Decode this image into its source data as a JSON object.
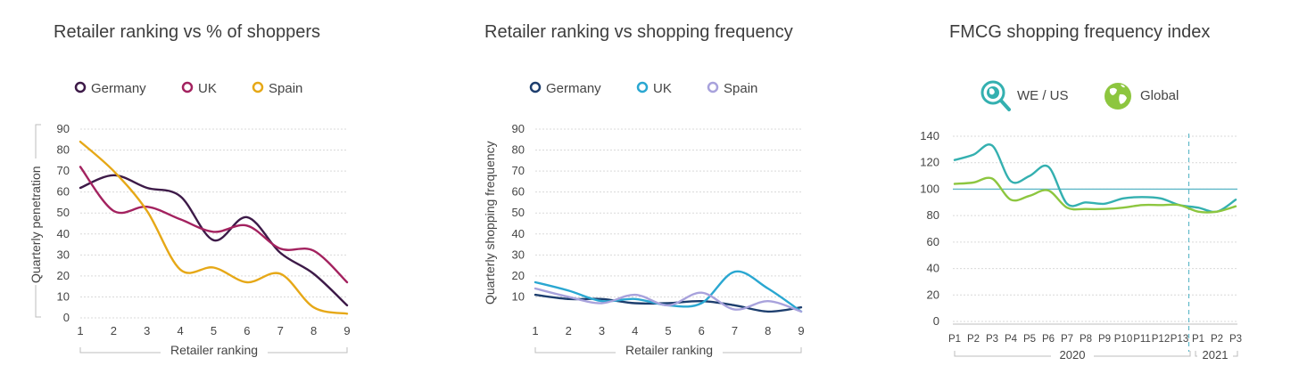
{
  "chart_data": [
    {
      "type": "line",
      "title": "Retailer ranking vs % of shoppers",
      "xlabel": "Retailer ranking",
      "ylabel": "Quarterly penetration",
      "x": [
        1,
        2,
        3,
        4,
        5,
        6,
        7,
        8,
        9
      ],
      "xticks": [
        "1",
        "2",
        "3",
        "4",
        "5",
        "6",
        "7",
        "8",
        "9"
      ],
      "yticks": [
        "0",
        "10",
        "20",
        "30",
        "40",
        "50",
        "60",
        "70",
        "80",
        "90"
      ],
      "ylim": [
        0,
        90
      ],
      "grid": true,
      "legend": "top",
      "series": [
        {
          "name": "Germany",
          "color": "#3d1a48",
          "values": [
            62,
            68,
            62,
            58,
            37,
            48,
            31,
            21,
            6
          ]
        },
        {
          "name": "UK",
          "color": "#a3225f",
          "values": [
            72,
            51,
            53,
            47,
            41,
            44,
            33,
            32,
            17
          ]
        },
        {
          "name": "Spain",
          "color": "#e6a817",
          "values": [
            84,
            70,
            51,
            23,
            24,
            17,
            21,
            5,
            2
          ]
        }
      ]
    },
    {
      "type": "line",
      "title": "Retailer ranking vs shopping frequency",
      "xlabel": "Retailer ranking",
      "ylabel": "Quarterly shopping frequency",
      "x": [
        1,
        2,
        3,
        4,
        5,
        6,
        7,
        8,
        9
      ],
      "xticks": [
        "1",
        "2",
        "3",
        "4",
        "5",
        "6",
        "7",
        "8",
        "9"
      ],
      "yticks": [
        "10",
        "20",
        "30",
        "40",
        "50",
        "60",
        "70",
        "80",
        "90"
      ],
      "ylim": [
        0,
        90
      ],
      "grid": true,
      "legend": "top",
      "series": [
        {
          "name": "Germany",
          "color": "#1d3e6e",
          "values": [
            11,
            9,
            9,
            7,
            7,
            8,
            6,
            3,
            5
          ]
        },
        {
          "name": "UK",
          "color": "#2aa7d1",
          "values": [
            17,
            13,
            8,
            9,
            6,
            7,
            22,
            14,
            3
          ]
        },
        {
          "name": "Spain",
          "color": "#a8a2dc",
          "values": [
            14,
            10,
            7,
            11,
            6,
            12,
            4,
            8,
            3
          ]
        }
      ]
    },
    {
      "type": "line",
      "title": "FMCG shopping frequency index",
      "xlabel": "",
      "ylabel": "",
      "x": [
        "P1",
        "P2",
        "P3",
        "P4",
        "P5",
        "P6",
        "P7",
        "P8",
        "P9",
        "P10",
        "P11",
        "P12",
        "P13",
        "P1",
        "P2",
        "P3"
      ],
      "xticks": [
        "P1",
        "P2",
        "P3",
        "P4",
        "P5",
        "P6",
        "P7",
        "P8",
        "P9",
        "P10",
        "P11",
        "P12",
        "P13",
        "P1",
        "P2",
        "P3"
      ],
      "yticks": [
        "0",
        "20",
        "40",
        "60",
        "80",
        "100",
        "120",
        "140"
      ],
      "ylim": [
        0,
        140
      ],
      "grid": true,
      "reference_line": 100,
      "period_divider_after": "P13 2020",
      "period_groups": [
        "2020",
        "2021"
      ],
      "legend": "top",
      "series": [
        {
          "name": "WE / US",
          "color": "#34b0b0",
          "icon": "globe-search-icon",
          "values": [
            122,
            126,
            133,
            106,
            110,
            117,
            89,
            90,
            89,
            93,
            94,
            93,
            88,
            86,
            83,
            92
          ]
        },
        {
          "name": "Global",
          "color": "#8dc63f",
          "icon": "globe-icon",
          "values": [
            104,
            105,
            108,
            92,
            95,
            99,
            86,
            85,
            85,
            86,
            88,
            88,
            88,
            83,
            83,
            87
          ]
        }
      ]
    }
  ]
}
